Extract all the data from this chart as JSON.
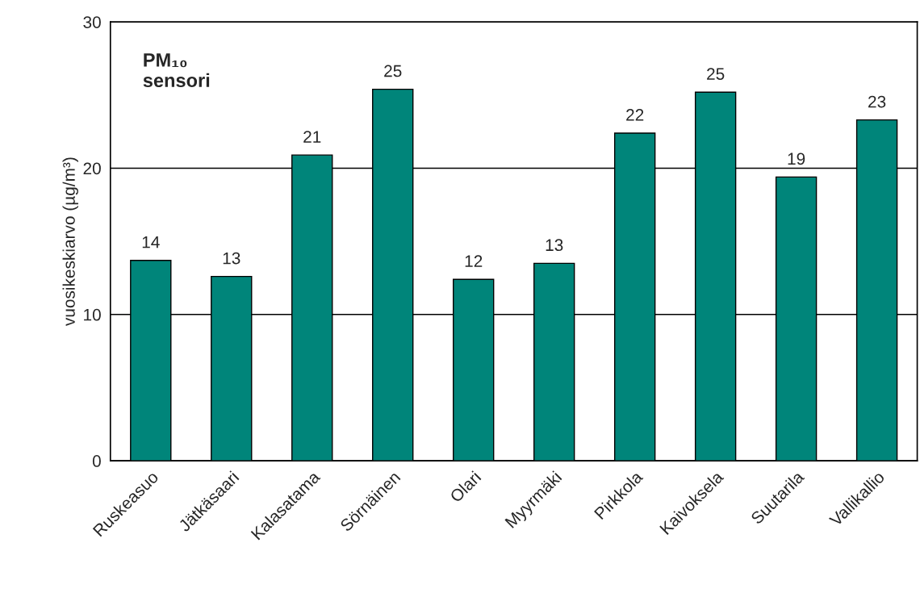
{
  "chart_data": {
    "type": "bar",
    "ylabel": "vuosikeskiarvo (µg/m³)",
    "categories": [
      "Ruskeasuo",
      "Jätkäsaari",
      "Kalasatama",
      "Sörnäinen",
      "Olari",
      "Myyrmäki",
      "Pirkkola",
      "Kaivoksela",
      "Suutarila",
      "Vallikallio"
    ],
    "values": [
      13.7,
      12.6,
      20.9,
      25.4,
      12.4,
      13.5,
      22.4,
      25.2,
      19.4,
      23.3
    ],
    "value_labels": [
      "14",
      "13",
      "21",
      "25",
      "12",
      "13",
      "22",
      "25",
      "19",
      "23"
    ],
    "color": "#00857a",
    "ylim": [
      0,
      30
    ],
    "yticks": [
      0,
      10,
      20,
      30
    ],
    "grid": "y",
    "annotations": [
      "PM₁₀\nsensori"
    ]
  }
}
